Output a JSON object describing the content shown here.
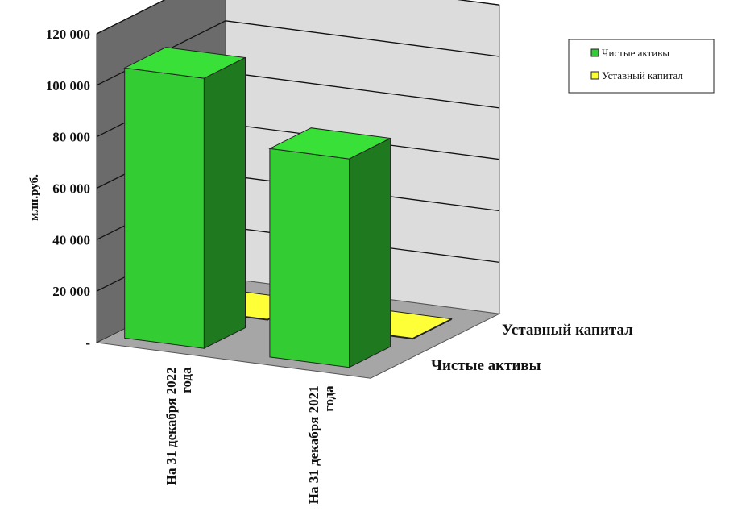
{
  "chart_data": {
    "type": "bar",
    "title": "",
    "ylabel": "млн.руб.",
    "ylim": [
      0,
      120000
    ],
    "y_ticks": [
      "-",
      "20 000",
      "40 000",
      "60 000",
      "80 000",
      "100 000",
      "120 000"
    ],
    "categories": [
      "На 31 декабря 2022 года",
      "На 31 декабря 2021 года"
    ],
    "categories_lines": [
      [
        "На 31 декабря 2022",
        "года"
      ],
      [
        "На 31 декабря 2021",
        "года"
      ]
    ],
    "series": [
      {
        "name": "Чистые активы",
        "values": [
          105000,
          81000
        ],
        "color": "#33cc33"
      },
      {
        "name": "Уставный капитал",
        "values": [
          300,
          300
        ],
        "color": "#ffff33"
      }
    ],
    "depth_labels": [
      "Уставный капитал",
      "Чистые активы"
    ],
    "legend": {
      "position": "top-right",
      "entries": [
        "Чистые активы",
        "Уставный капитал"
      ]
    },
    "grid": true,
    "style": "3d"
  }
}
